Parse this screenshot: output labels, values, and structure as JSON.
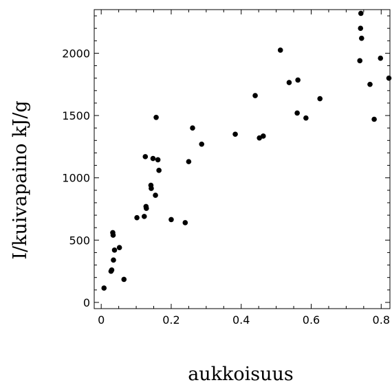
{
  "chart_data": {
    "type": "scatter",
    "title": "",
    "xlabel": "aukkoisuus",
    "ylabel": "I/kuivapaino kJ/g",
    "xlim": [
      -0.02,
      0.825
    ],
    "ylim": [
      -50,
      2350
    ],
    "x_ticks": [
      0,
      0.2,
      0.4,
      0.6,
      0.8
    ],
    "x_tick_labels": [
      "0",
      "0.2",
      "0.4",
      "0.6",
      "0.8"
    ],
    "y_ticks": [
      0,
      500,
      1000,
      1500,
      2000
    ],
    "y_tick_labels": [
      "0",
      "500",
      "1000",
      "1500",
      "2000"
    ],
    "grid": false,
    "legend": "none",
    "marker_color": "#000000",
    "series": [
      {
        "points": [
          [
            0.008,
            115
          ],
          [
            0.028,
            250
          ],
          [
            0.03,
            260
          ],
          [
            0.033,
            560
          ],
          [
            0.034,
            540
          ],
          [
            0.035,
            340
          ],
          [
            0.038,
            420
          ],
          [
            0.052,
            440
          ],
          [
            0.065,
            185
          ],
          [
            0.102,
            680
          ],
          [
            0.123,
            690
          ],
          [
            0.126,
            1170
          ],
          [
            0.128,
            770
          ],
          [
            0.129,
            755
          ],
          [
            0.142,
            940
          ],
          [
            0.143,
            915
          ],
          [
            0.148,
            1155
          ],
          [
            0.155,
            860
          ],
          [
            0.157,
            1485
          ],
          [
            0.162,
            1145
          ],
          [
            0.165,
            1060
          ],
          [
            0.2,
            665
          ],
          [
            0.24,
            640
          ],
          [
            0.25,
            1130
          ],
          [
            0.261,
            1400
          ],
          [
            0.287,
            1270
          ],
          [
            0.383,
            1350
          ],
          [
            0.44,
            1660
          ],
          [
            0.452,
            1320
          ],
          [
            0.463,
            1335
          ],
          [
            0.512,
            2025
          ],
          [
            0.537,
            1765
          ],
          [
            0.56,
            1520
          ],
          [
            0.562,
            1785
          ],
          [
            0.585,
            1480
          ],
          [
            0.625,
            1635
          ],
          [
            0.739,
            1940
          ],
          [
            0.741,
            2200
          ],
          [
            0.742,
            2320
          ],
          [
            0.744,
            2120
          ],
          [
            0.768,
            1750
          ],
          [
            0.78,
            1470
          ],
          [
            0.798,
            1960
          ],
          [
            0.822,
            1800
          ]
        ]
      }
    ]
  }
}
